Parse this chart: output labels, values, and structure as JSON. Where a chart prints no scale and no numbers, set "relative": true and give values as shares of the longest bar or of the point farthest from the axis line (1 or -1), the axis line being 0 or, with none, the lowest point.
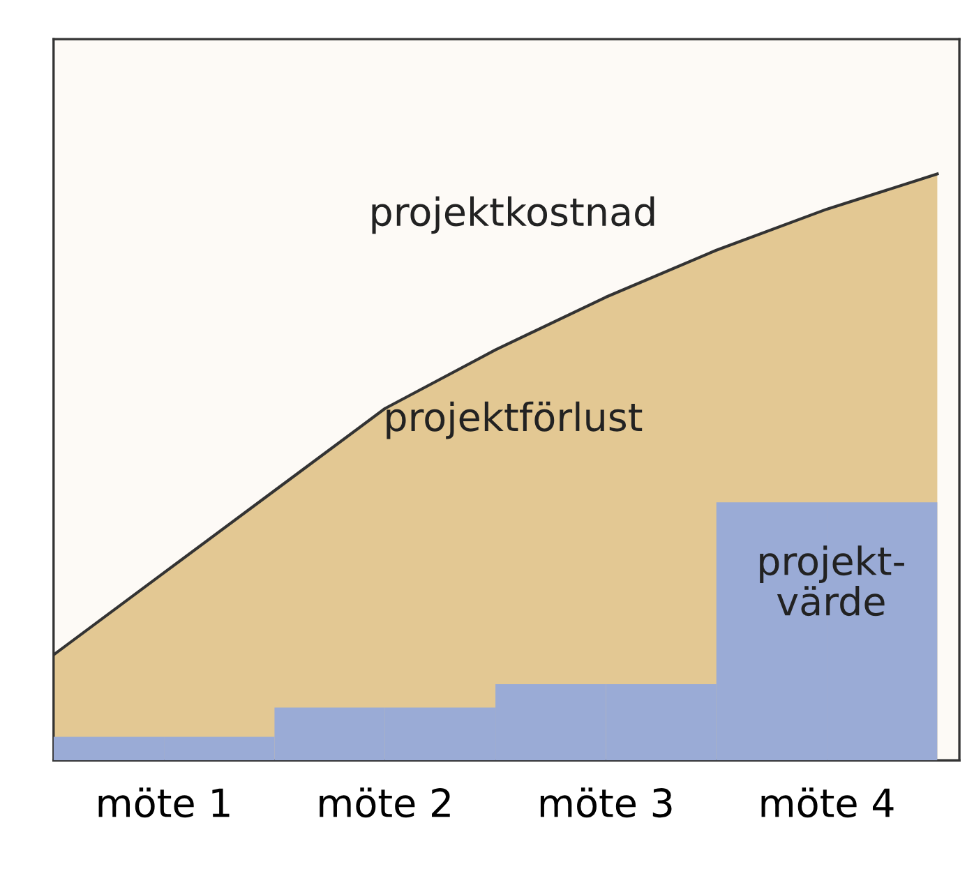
{
  "chart_data": {
    "type": "area",
    "relative": true,
    "categories": [
      null,
      "möte 1",
      null,
      "möte 2",
      null,
      "möte 3",
      null,
      "möte 4",
      null
    ],
    "series": [
      {
        "color": "#e3c893",
        "values": [
          0.18,
          0.32,
          0.46,
          0.6,
          0.7,
          0.79,
          0.87,
          0.94,
          1
        ]
      },
      {
        "type": "bar",
        "color": "#9aabd6",
        "values": [
          0.04,
          0.04,
          0.09,
          0.09,
          0.13,
          0.13,
          0.44,
          0.44,
          null
        ]
      }
    ],
    "annotations": [
      "projektkostnad",
      "projektförlust",
      "projekt-\nvärde"
    ]
  }
}
